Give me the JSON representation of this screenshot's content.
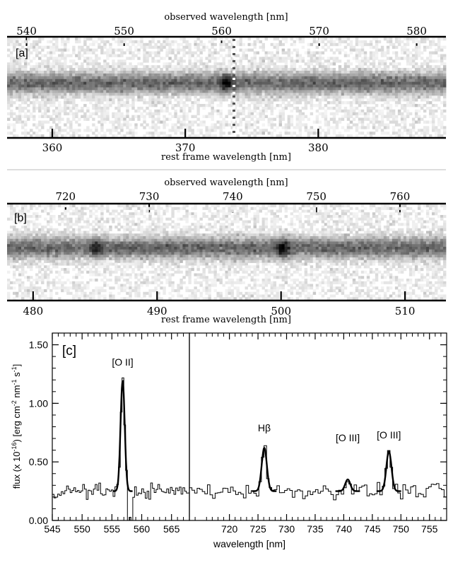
{
  "chart_data": [
    {
      "panel_label": "[a]",
      "type": "heatmap",
      "description_top_axis": "observed wavelength [nm]",
      "top_ticks": [
        540,
        550,
        560,
        570,
        580
      ],
      "description_bottom_axis": "rest frame wavelength [nm]",
      "bottom_ticks": [
        360,
        370,
        380
      ],
      "xlim_top": [
        538,
        583
      ],
      "xlim_bottom": [
        356.6,
        389.6
      ]
    },
    {
      "panel_label": "[b]",
      "type": "heatmap",
      "description_top_axis": "observed wavelength [nm]",
      "top_ticks": [
        720,
        730,
        740,
        750,
        760
      ],
      "description_bottom_axis": "rest frame wavelength [nm]",
      "bottom_ticks": [
        480,
        490,
        500,
        510
      ],
      "xlim_top": [
        713,
        765.5
      ],
      "xlim_bottom": [
        477.9,
        513.3
      ]
    },
    {
      "panel_label": "[c]",
      "type": "line",
      "xlabel": "wavelength [nm]",
      "ylabel": "flux (x 10^-16) [erg cm^-2 nm^-1 s^-1]",
      "ylabel_parts": {
        "a": "flux (x 10",
        "b": "-16",
        "c": ") [erg cm",
        "d": "-2",
        "e": " nm",
        "f": "-1",
        "g": " s",
        "h": "-1",
        "i": "]"
      },
      "ylim": [
        0,
        1.6
      ],
      "yticks": [
        "0.00",
        "0.50",
        "1.00",
        "1.50"
      ],
      "subpanels": [
        {
          "xlim": [
            545,
            568
          ],
          "xticks": [
            545,
            550,
            555,
            560,
            565
          ]
        },
        {
          "xlim": [
            713,
            758
          ],
          "xticks": [
            720,
            725,
            730,
            735,
            740,
            745,
            750,
            755
          ]
        }
      ],
      "lines": [
        {
          "name": "[O II]",
          "x": 556.8,
          "peak": 1.19,
          "subpanel": 0
        },
        {
          "name": "Hβ",
          "x": 726.1,
          "peak": 0.62,
          "subpanel": 1
        },
        {
          "name": "[O III]",
          "x": 740.7,
          "peak": 0.35,
          "subpanel": 1
        },
        {
          "name": "[O III]",
          "x": 747.9,
          "peak": 0.59,
          "subpanel": 1
        }
      ],
      "continuum_level": 0.25
    }
  ]
}
